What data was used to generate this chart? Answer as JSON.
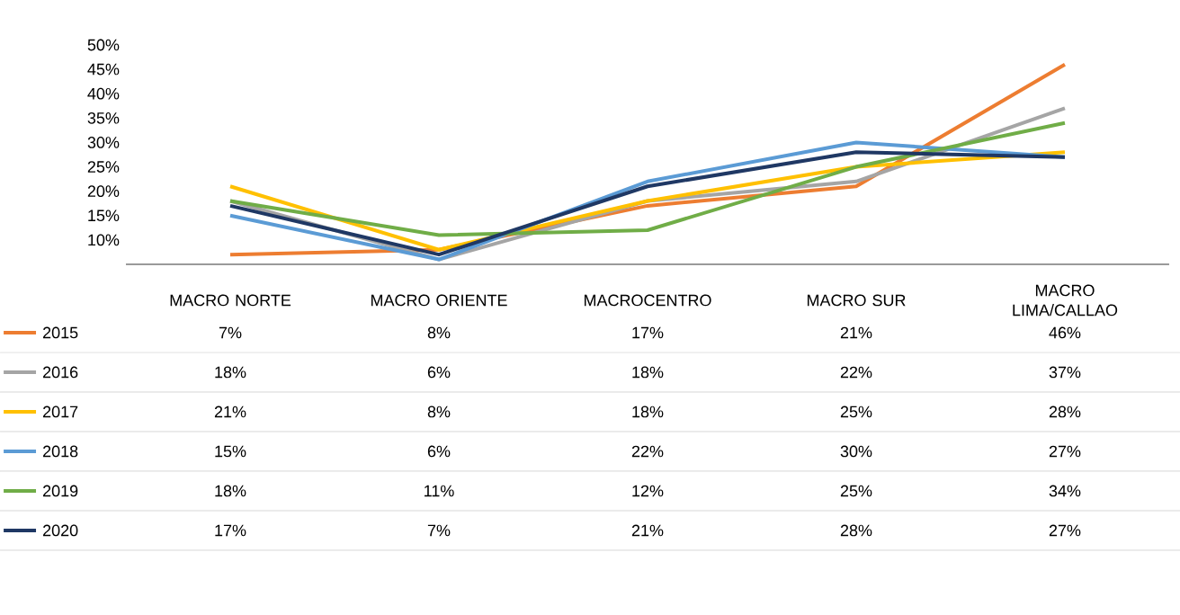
{
  "chart_data": {
    "type": "line",
    "categories": [
      "MACRO NORTE",
      "MACRO ORIENTE",
      "MACROCENTRO",
      "MACRO SUR",
      "MACRO LIMA/CALLAO"
    ],
    "series": [
      {
        "name": "2015",
        "color": "#ed7d31",
        "values": [
          7,
          8,
          17,
          21,
          46
        ],
        "value_labels": [
          "7%",
          "8%",
          "17%",
          "21%",
          "46%"
        ]
      },
      {
        "name": "2016",
        "color": "#a5a5a5",
        "values": [
          18,
          6,
          18,
          22,
          37
        ],
        "value_labels": [
          "18%",
          "6%",
          "18%",
          "22%",
          "37%"
        ]
      },
      {
        "name": "2017",
        "color": "#ffc000",
        "values": [
          21,
          8,
          18,
          25,
          28
        ],
        "value_labels": [
          "21%",
          "8%",
          "18%",
          "25%",
          "28%"
        ]
      },
      {
        "name": "2018",
        "color": "#5b9bd5",
        "values": [
          15,
          6,
          22,
          30,
          27
        ],
        "value_labels": [
          "15%",
          "6%",
          "22%",
          "30%",
          "27%"
        ]
      },
      {
        "name": "2019",
        "color": "#70ad47",
        "values": [
          18,
          11,
          12,
          25,
          34
        ],
        "value_labels": [
          "18%",
          "11%",
          "12%",
          "25%",
          "34%"
        ]
      },
      {
        "name": "2020",
        "color": "#1f3864",
        "values": [
          17,
          7,
          21,
          28,
          27
        ],
        "value_labels": [
          "17%",
          "7%",
          "21%",
          "28%",
          "27%"
        ]
      }
    ],
    "ylim": [
      5,
      50
    ],
    "yticks": [
      {
        "value": 10,
        "label": "10%"
      },
      {
        "value": 15,
        "label": "15%"
      },
      {
        "value": 20,
        "label": "20%"
      },
      {
        "value": 25,
        "label": "25%"
      },
      {
        "value": 30,
        "label": "30%"
      },
      {
        "value": 35,
        "label": "35%"
      },
      {
        "value": 40,
        "label": "40%"
      },
      {
        "value": 45,
        "label": "45%"
      },
      {
        "value": 50,
        "label": "50%"
      }
    ],
    "legend": "bottom left",
    "marker": "none"
  }
}
